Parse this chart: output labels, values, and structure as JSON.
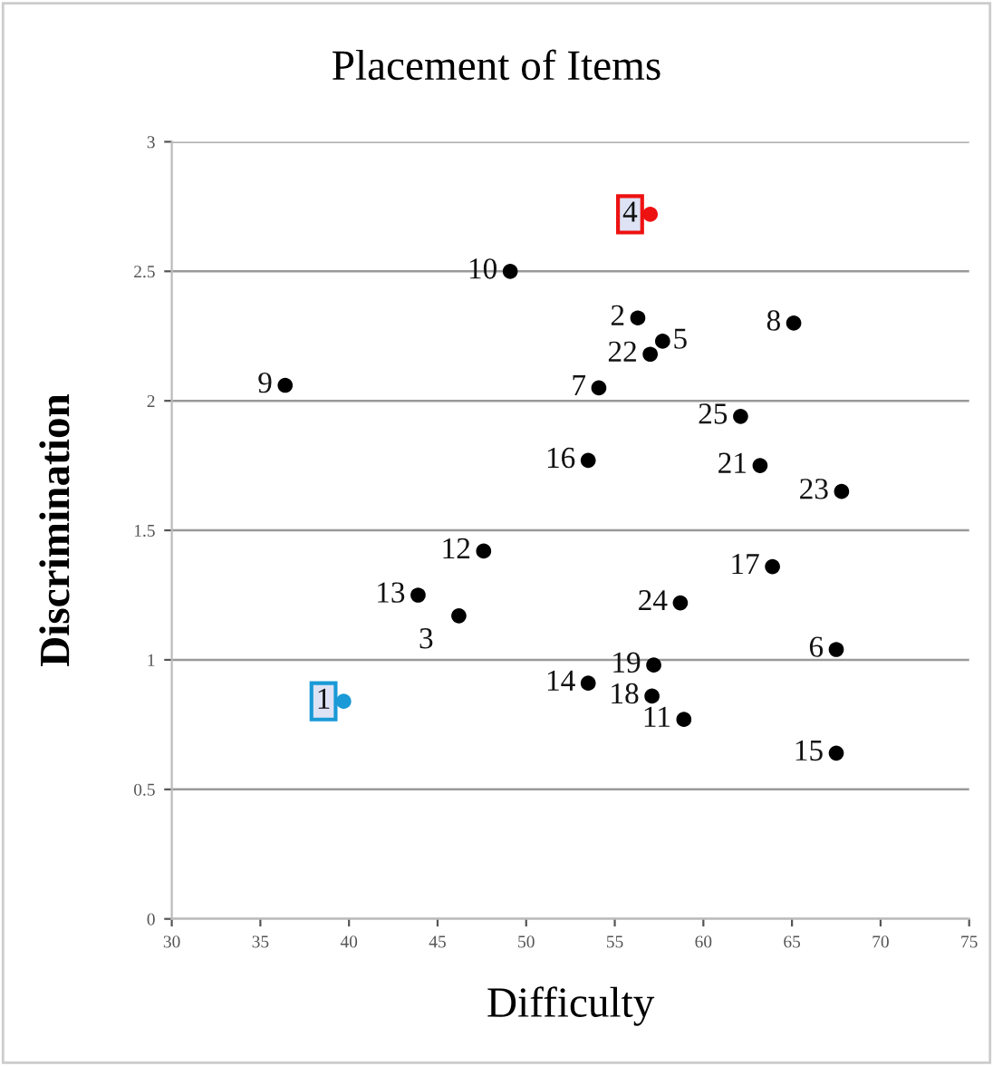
{
  "chart_data": {
    "type": "scatter",
    "title": "Placement of Items",
    "xlabel": "Difficulty",
    "ylabel": "Discrimination",
    "series": [
      {
        "name": "1",
        "color": "#1a9ad6",
        "x": [
          39.7
        ],
        "values": [
          0.84
        ]
      },
      {
        "name": "2",
        "color": "#000000",
        "x": [
          56.3
        ],
        "values": [
          2.32
        ]
      },
      {
        "name": "3",
        "color": "#000000",
        "x": [
          46.2
        ],
        "values": [
          1.17
        ]
      },
      {
        "name": "4",
        "color": "#ee1111",
        "x": [
          57.0
        ],
        "values": [
          2.72
        ]
      },
      {
        "name": "5",
        "color": "#000000",
        "x": [
          57.7
        ],
        "values": [
          2.23
        ]
      },
      {
        "name": "6",
        "color": "#000000",
        "x": [
          67.5
        ],
        "values": [
          1.04
        ]
      },
      {
        "name": "7",
        "color": "#000000",
        "x": [
          54.1
        ],
        "values": [
          2.05
        ]
      },
      {
        "name": "8",
        "color": "#000000",
        "x": [
          65.1
        ],
        "values": [
          2.3
        ]
      },
      {
        "name": "9",
        "color": "#000000",
        "x": [
          36.4
        ],
        "values": [
          2.06
        ]
      },
      {
        "name": "10",
        "color": "#000000",
        "x": [
          49.1
        ],
        "values": [
          2.5
        ]
      },
      {
        "name": "11",
        "color": "#000000",
        "x": [
          58.9
        ],
        "values": [
          0.77
        ]
      },
      {
        "name": "12",
        "color": "#000000",
        "x": [
          47.6
        ],
        "values": [
          1.42
        ]
      },
      {
        "name": "13",
        "color": "#000000",
        "x": [
          43.9
        ],
        "values": [
          1.25
        ]
      },
      {
        "name": "14",
        "color": "#000000",
        "x": [
          53.5
        ],
        "values": [
          0.91
        ]
      },
      {
        "name": "15",
        "color": "#000000",
        "x": [
          67.5
        ],
        "values": [
          0.64
        ]
      },
      {
        "name": "16",
        "color": "#000000",
        "x": [
          53.5
        ],
        "values": [
          1.77
        ]
      },
      {
        "name": "17",
        "color": "#000000",
        "x": [
          63.9
        ],
        "values": [
          1.36
        ]
      },
      {
        "name": "18",
        "color": "#000000",
        "x": [
          57.1
        ],
        "values": [
          0.86
        ]
      },
      {
        "name": "19",
        "color": "#000000",
        "x": [
          57.2
        ],
        "values": [
          0.98
        ]
      },
      {
        "name": "21",
        "color": "#000000",
        "x": [
          63.2
        ],
        "values": [
          1.75
        ]
      },
      {
        "name": "22",
        "color": "#000000",
        "x": [
          57.0
        ],
        "values": [
          2.18
        ]
      },
      {
        "name": "23",
        "color": "#000000",
        "x": [
          67.8
        ],
        "values": [
          1.65
        ]
      },
      {
        "name": "24",
        "color": "#000000",
        "x": [
          58.7
        ],
        "values": [
          1.22
        ]
      },
      {
        "name": "25",
        "color": "#000000",
        "x": [
          62.1
        ],
        "values": [
          1.94
        ]
      }
    ],
    "xlim": [
      30,
      75
    ],
    "xticks": [
      30,
      35,
      40,
      45,
      50,
      55,
      60,
      65,
      70,
      75
    ],
    "ylim": [
      0,
      3
    ],
    "yticks": [
      0,
      0.5,
      1,
      1.5,
      2,
      2.5,
      3
    ],
    "grid": "y",
    "marker": "circle"
  }
}
